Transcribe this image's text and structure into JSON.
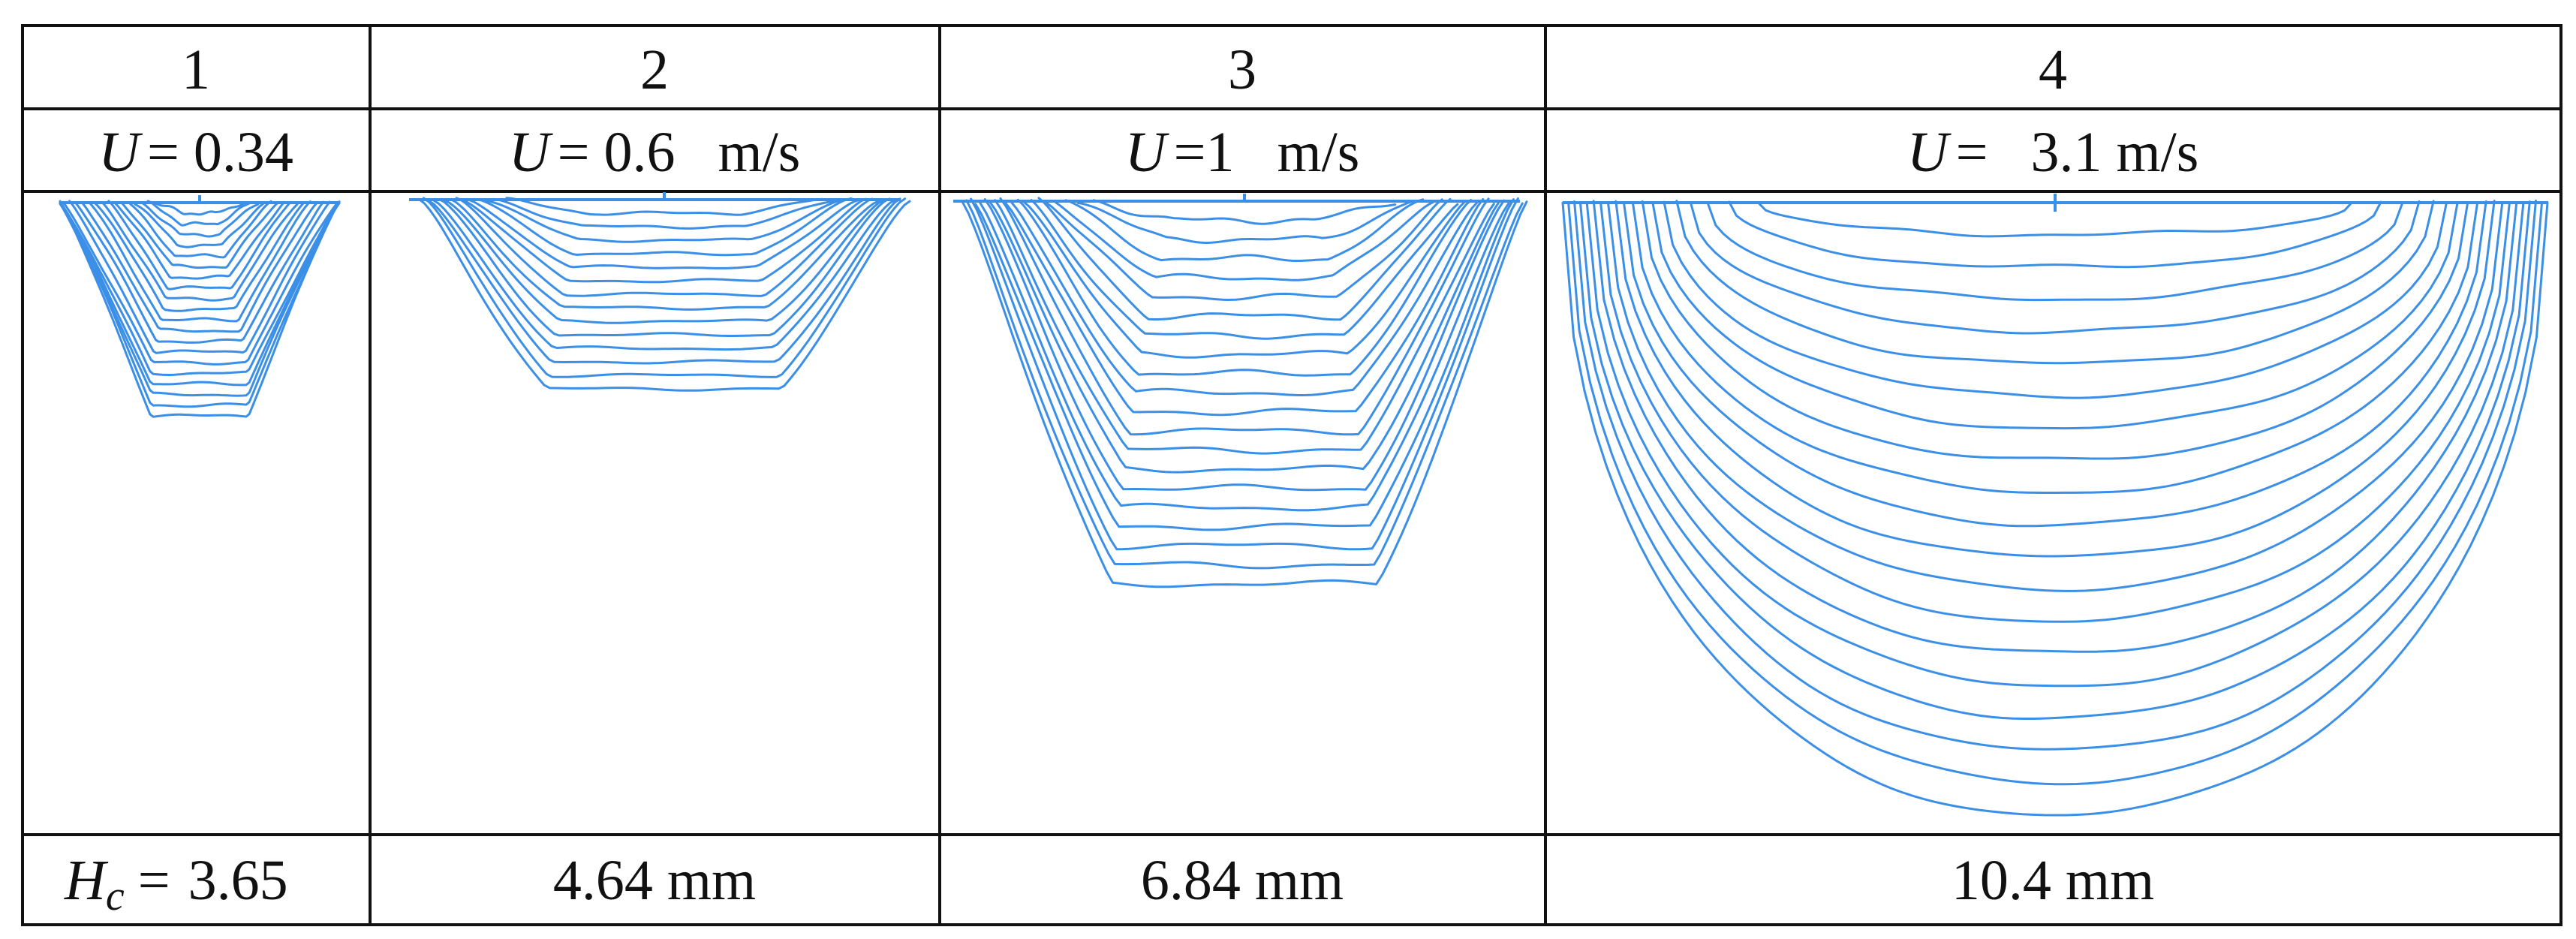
{
  "columns": [
    {
      "index": "1",
      "velocity": "= 0.34",
      "depth_value": "3.65",
      "profiles": 20,
      "shape": "v"
    },
    {
      "index": "2",
      "velocity": "= 0.6   m/s",
      "depth_value": "4.64 mm",
      "profiles": 14,
      "shape": "bowl"
    },
    {
      "index": "3",
      "velocity": "=1   m/s",
      "depth_value": "6.84 mm",
      "profiles": 20,
      "shape": "deep"
    },
    {
      "index": "4",
      "velocity": "=   3.1 m/s",
      "depth_value": "10.4 mm",
      "profiles": 19,
      "shape": "round"
    }
  ],
  "symbols": {
    "velocity": "U",
    "depth": "H",
    "depth_subscript": "c",
    "depth_equals": "="
  },
  "colors": {
    "profile_line": "#3b8fe6",
    "grid": "#111111"
  }
}
